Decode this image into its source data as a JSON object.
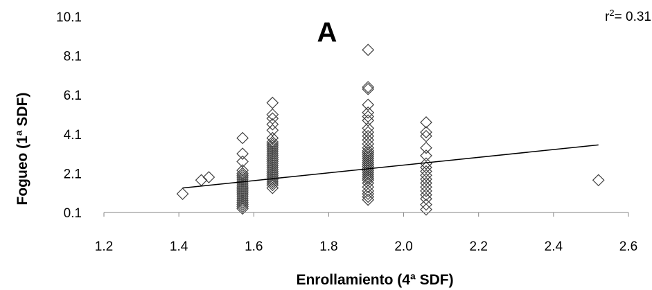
{
  "chart_data": {
    "type": "scatter",
    "panel_label": "A",
    "xlabel": "Enrollamiento (4ª SDF)",
    "ylabel": "Fogueo (1ª SDF)",
    "xlim": [
      1.2,
      2.6
    ],
    "ylim": [
      0.1,
      10.1
    ],
    "x_ticks": [
      "1.2",
      "1.4",
      "1.6",
      "1.8",
      "2.0",
      "2.2",
      "2.4",
      "2.6"
    ],
    "y_ticks": [
      "0.1",
      "2.1",
      "4.1",
      "6.1",
      "8.1",
      "10.1"
    ],
    "annotation": {
      "prefix": "r",
      "sup": "2",
      "suffix": "= 0.31"
    },
    "marker": "open-diamond",
    "marker_color": "#404040",
    "trendline": {
      "x": [
        1.41,
        2.52
      ],
      "y": [
        1.35,
        3.55
      ],
      "color": "#000000"
    },
    "points": [
      [
        1.41,
        1.05
      ],
      [
        1.46,
        1.75
      ],
      [
        1.48,
        1.9
      ],
      [
        1.57,
        0.3
      ],
      [
        1.57,
        0.4
      ],
      [
        1.57,
        0.5
      ],
      [
        1.57,
        0.6
      ],
      [
        1.57,
        0.7
      ],
      [
        1.57,
        0.8
      ],
      [
        1.57,
        0.9
      ],
      [
        1.57,
        1.0
      ],
      [
        1.57,
        1.1
      ],
      [
        1.57,
        1.2
      ],
      [
        1.57,
        1.3
      ],
      [
        1.57,
        1.4
      ],
      [
        1.57,
        1.5
      ],
      [
        1.57,
        1.6
      ],
      [
        1.57,
        1.7
      ],
      [
        1.57,
        1.8
      ],
      [
        1.57,
        1.9
      ],
      [
        1.57,
        2.0
      ],
      [
        1.57,
        2.1
      ],
      [
        1.57,
        2.25
      ],
      [
        1.57,
        2.7
      ],
      [
        1.57,
        3.1
      ],
      [
        1.57,
        3.9
      ],
      [
        1.65,
        1.35
      ],
      [
        1.65,
        1.5
      ],
      [
        1.65,
        1.6
      ],
      [
        1.65,
        1.7
      ],
      [
        1.65,
        1.8
      ],
      [
        1.65,
        1.9
      ],
      [
        1.65,
        2.0
      ],
      [
        1.65,
        2.1
      ],
      [
        1.65,
        2.2
      ],
      [
        1.65,
        2.3
      ],
      [
        1.65,
        2.4
      ],
      [
        1.65,
        2.5
      ],
      [
        1.65,
        2.6
      ],
      [
        1.65,
        2.7
      ],
      [
        1.65,
        2.8
      ],
      [
        1.65,
        2.9
      ],
      [
        1.65,
        3.0
      ],
      [
        1.65,
        3.1
      ],
      [
        1.65,
        3.2
      ],
      [
        1.65,
        3.3
      ],
      [
        1.65,
        3.4
      ],
      [
        1.65,
        3.5
      ],
      [
        1.65,
        3.6
      ],
      [
        1.65,
        3.7
      ],
      [
        1.65,
        3.9
      ],
      [
        1.65,
        4.3
      ],
      [
        1.65,
        4.6
      ],
      [
        1.65,
        4.9
      ],
      [
        1.65,
        5.1
      ],
      [
        1.65,
        5.7
      ],
      [
        1.905,
        0.75
      ],
      [
        1.905,
        0.9
      ],
      [
        1.905,
        1.05
      ],
      [
        1.905,
        1.2
      ],
      [
        1.905,
        1.4
      ],
      [
        1.905,
        1.6
      ],
      [
        1.905,
        1.75
      ],
      [
        1.905,
        1.85
      ],
      [
        1.905,
        1.95
      ],
      [
        1.905,
        2.05
      ],
      [
        1.905,
        2.15
      ],
      [
        1.905,
        2.25
      ],
      [
        1.905,
        2.35
      ],
      [
        1.905,
        2.45
      ],
      [
        1.905,
        2.55
      ],
      [
        1.905,
        2.65
      ],
      [
        1.905,
        2.75
      ],
      [
        1.905,
        2.85
      ],
      [
        1.905,
        2.95
      ],
      [
        1.905,
        3.05
      ],
      [
        1.905,
        3.15
      ],
      [
        1.905,
        3.25
      ],
      [
        1.905,
        3.4
      ],
      [
        1.905,
        3.6
      ],
      [
        1.905,
        3.8
      ],
      [
        1.905,
        4.0
      ],
      [
        1.905,
        4.2
      ],
      [
        1.905,
        4.4
      ],
      [
        1.905,
        4.8
      ],
      [
        1.905,
        5.0
      ],
      [
        1.905,
        5.2
      ],
      [
        1.905,
        5.6
      ],
      [
        1.905,
        6.4
      ],
      [
        1.905,
        6.5
      ],
      [
        1.905,
        8.4
      ],
      [
        2.06,
        0.25
      ],
      [
        2.06,
        0.5
      ],
      [
        2.06,
        0.8
      ],
      [
        2.06,
        1.0
      ],
      [
        2.06,
        1.2
      ],
      [
        2.06,
        1.4
      ],
      [
        2.06,
        1.6
      ],
      [
        2.06,
        1.8
      ],
      [
        2.06,
        2.0
      ],
      [
        2.06,
        2.2
      ],
      [
        2.06,
        2.4
      ],
      [
        2.06,
        2.6
      ],
      [
        2.06,
        3.0
      ],
      [
        2.06,
        3.4
      ],
      [
        2.06,
        4.0
      ],
      [
        2.06,
        4.2
      ],
      [
        2.06,
        4.7
      ],
      [
        2.52,
        1.75
      ]
    ]
  }
}
